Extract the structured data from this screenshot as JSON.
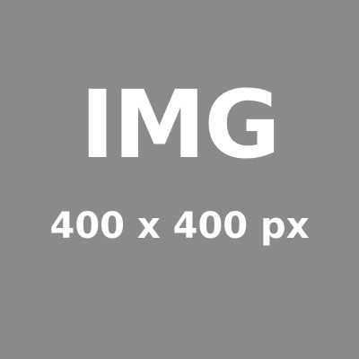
{
  "placeholder": {
    "title": "IMG",
    "dimensions": "400 x 400 px",
    "background_color": "#8a8a8a",
    "text_color": "#ffffff"
  }
}
